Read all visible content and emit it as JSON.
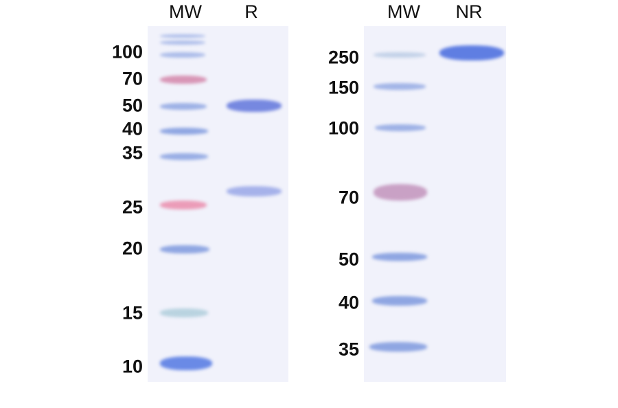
{
  "left_gel": {
    "lanes": [
      "MW",
      "R"
    ],
    "markers": [
      "100",
      "70",
      "50",
      "40",
      "35",
      "25",
      "20",
      "15",
      "10"
    ]
  },
  "right_gel": {
    "lanes": [
      "MW",
      "NR"
    ],
    "markers": [
      "250",
      "150",
      "100",
      "70",
      "50",
      "40",
      "35"
    ]
  },
  "colors": {
    "marker_blue": "#8fa6e2",
    "marker_pink": "#d896b6",
    "sample_band": "#6f86e0",
    "gel_background": "#f1f2fb"
  }
}
